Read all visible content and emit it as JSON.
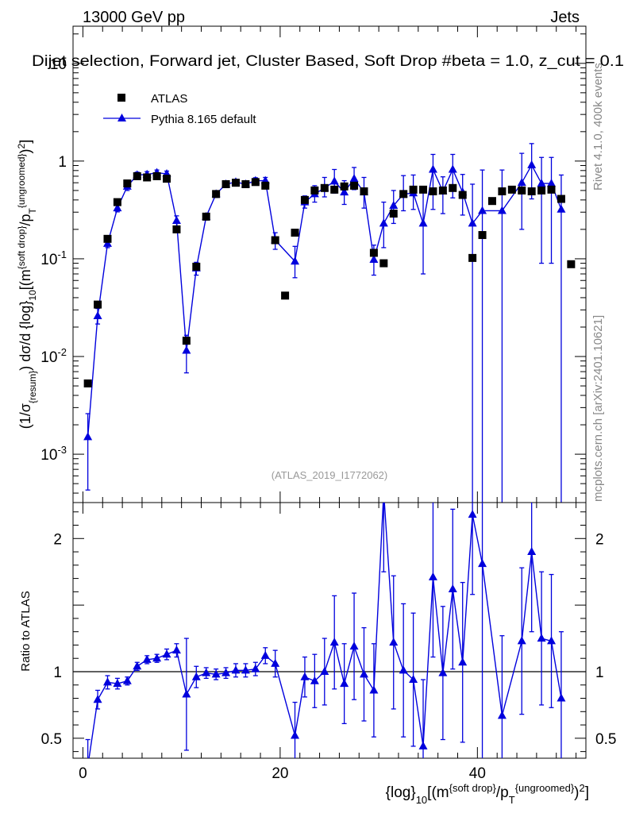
{
  "header": {
    "left": "13000 GeV pp",
    "right": "Jets",
    "title": "Dijet selection, Forward jet, Cluster Based, Soft Drop #beta = 1.0, z_cut = 0.1"
  },
  "side_labels": {
    "rivet": "Rivet 4.1.0,  400k events",
    "mcplots": "mcplots.cern.ch [arXiv:2401.10621]"
  },
  "watermark": "(ATLAS_2019_I1772062)",
  "colors": {
    "data": "#000000",
    "mc": "#0000dd"
  },
  "chart_data": [
    {
      "type": "scatter",
      "panel": "main",
      "xlabel": "{log}_10[(m^{soft drop}/p_T^{ungroomed})^2]",
      "ylabel": "(1/σ_{resum}) dσ/d {log}_10[(m^{soft drop}/p_T^{ungroomed})^2]",
      "yscale": "log",
      "xlim": [
        -1,
        51
      ],
      "ylim": [
        0.00032,
        24
      ],
      "xticks": [
        0,
        20,
        40
      ],
      "yticks": [
        {
          "value": 10,
          "label": "10"
        },
        {
          "value": 1,
          "label": "1"
        },
        {
          "value": 0.1,
          "label": "10^-1"
        },
        {
          "value": 0.01,
          "label": "10^-2"
        },
        {
          "value": 0.001,
          "label": "10^-3"
        }
      ],
      "legend": [
        "ATLAS",
        "Pythia 8.165 default"
      ],
      "legend_position": "top-left",
      "series": [
        {
          "name": "ATLAS",
          "marker": "square",
          "x": [
            0.5,
            1.5,
            2.5,
            3.5,
            4.5,
            5.5,
            6.5,
            7.5,
            8.5,
            9.5,
            10.5,
            11.5,
            12.5,
            13.5,
            14.5,
            15.5,
            16.5,
            17.5,
            18.5,
            19.5,
            20.5,
            21.5,
            22.5,
            23.5,
            24.5,
            25.5,
            26.5,
            27.5,
            28.5,
            29.5,
            30.5,
            31.5,
            32.5,
            33.5,
            34.5,
            35.5,
            36.5,
            37.5,
            38.5,
            39.5,
            40.5,
            41.5,
            42.5,
            43.5,
            44.5,
            45.5,
            46.5,
            47.5,
            48.5,
            49.5
          ],
          "y": [
            0.0053,
            0.034,
            0.16,
            0.38,
            0.59,
            0.7,
            0.68,
            0.7,
            0.66,
            0.2,
            0.0145,
            0.083,
            0.27,
            0.46,
            0.58,
            0.6,
            0.58,
            0.61,
            0.56,
            0.155,
            0.042,
            0.185,
            0.4,
            0.5,
            0.53,
            0.51,
            0.55,
            0.56,
            0.49,
            0.115,
            0.09,
            0.29,
            0.46,
            0.51,
            0.51,
            0.49,
            0.5,
            0.53,
            0.45,
            0.102,
            0.175,
            0.39,
            0.49,
            0.51,
            0.5,
            0.49,
            0.5,
            0.51,
            0.41,
            0.088
          ]
        },
        {
          "name": "Pythia 8.165 default",
          "marker": "triangle",
          "x": [
            0.5,
            1.5,
            2.5,
            3.5,
            4.5,
            5.5,
            6.5,
            7.5,
            8.5,
            9.5,
            10.5,
            11.5,
            12.5,
            13.5,
            14.5,
            15.5,
            16.5,
            17.5,
            18.5,
            19.5,
            21.5,
            22.5,
            23.5,
            24.5,
            25.5,
            26.5,
            27.5,
            28.5,
            29.5,
            30.5,
            31.5,
            32.5,
            33.5,
            34.5,
            35.5,
            36.5,
            37.5,
            38.5,
            39.5,
            40.5,
            42.5,
            44.5,
            45.5,
            46.5,
            47.5,
            48.5
          ],
          "y": [
            0.0015,
            0.026,
            0.143,
            0.33,
            0.55,
            0.72,
            0.73,
            0.76,
            0.74,
            0.245,
            0.0115,
            0.08,
            0.27,
            0.46,
            0.58,
            0.61,
            0.58,
            0.63,
            0.63,
            0.155,
            0.094,
            0.38,
            0.46,
            0.53,
            0.62,
            0.48,
            0.66,
            0.48,
            0.098,
            0.23,
            0.35,
            0.46,
            0.47,
            0.23,
            0.82,
            0.49,
            0.82,
            0.48,
            0.23,
            0.31,
            0.31,
            0.6,
            0.91,
            0.59,
            0.59,
            0.32
          ],
          "yerr_low": [
            0.00107,
            0.0045,
            0.013,
            0.028,
            0.05,
            0.05,
            0.05,
            0.05,
            0.05,
            0.03,
            0.0047,
            0.012,
            0.02,
            0.035,
            0.045,
            0.04,
            0.04,
            0.045,
            0.05,
            0.03,
            0.03,
            0.05,
            0.08,
            0.1,
            0.15,
            0.12,
            0.15,
            0.15,
            0.03,
            0.1,
            0.12,
            0.15,
            0.15,
            0.16,
            0.5,
            0.2,
            0.4,
            0.2,
            0.23,
            0.31,
            0.31,
            0.4,
            0.5,
            0.5,
            0.5,
            0.32
          ],
          "yerr_high": [
            0.0011,
            0.005,
            0.013,
            0.03,
            0.05,
            0.05,
            0.05,
            0.05,
            0.05,
            0.03,
            0.005,
            0.012,
            0.02,
            0.035,
            0.045,
            0.04,
            0.04,
            0.045,
            0.05,
            0.03,
            0.04,
            0.06,
            0.1,
            0.15,
            0.2,
            0.15,
            0.2,
            0.2,
            0.04,
            0.15,
            0.15,
            0.25,
            0.25,
            0.3,
            0.35,
            0.2,
            0.35,
            0.25,
            0.35,
            0.5,
            0.5,
            0.6,
            0.6,
            0.5,
            0.5,
            0.4
          ]
        }
      ]
    },
    {
      "type": "line",
      "panel": "ratio",
      "ylabel": "Ratio to ATLAS",
      "xlabel": "{log}_10[(m^{soft drop}/p_T^{ungroomed})^2]",
      "xlim": [
        -1,
        51
      ],
      "ylim": [
        0.35,
        2.27
      ],
      "yticks": [
        0.5,
        1,
        2
      ],
      "reference_line": 1,
      "series": [
        {
          "name": "Pythia 8.165 default / ATLAS",
          "x": [
            0.5,
            1.5,
            2.5,
            3.5,
            4.5,
            5.5,
            6.5,
            7.5,
            8.5,
            9.5,
            10.5,
            11.5,
            12.5,
            13.5,
            14.5,
            15.5,
            16.5,
            17.5,
            18.5,
            19.5,
            21.5,
            22.5,
            23.5,
            24.5,
            25.5,
            26.5,
            27.5,
            28.5,
            29.5,
            30.5,
            31.5,
            32.5,
            33.5,
            34.5,
            35.5,
            36.5,
            37.5,
            38.5,
            39.5,
            40.5,
            42.5,
            44.5,
            45.5,
            46.5,
            47.5,
            48.5
          ],
          "y": [
            0.29,
            0.79,
            0.92,
            0.91,
            0.93,
            1.04,
            1.09,
            1.1,
            1.13,
            1.16,
            0.83,
            0.96,
            0.99,
            0.98,
            0.99,
            1.01,
            1.01,
            1.02,
            1.12,
            1.06,
            0.52,
            0.96,
            0.93,
            1.0,
            1.22,
            0.91,
            1.19,
            0.98,
            0.86,
            2.35,
            1.22,
            1.01,
            0.94,
            0.44,
            1.71,
            0.99,
            1.62,
            1.07,
            2.18,
            1.81,
            0.67,
            1.23,
            1.9,
            1.25,
            1.23,
            0.8
          ],
          "yerr": [
            0.2,
            0.07,
            0.05,
            0.04,
            0.03,
            0.03,
            0.03,
            0.03,
            0.04,
            0.05,
            0.42,
            0.08,
            0.04,
            0.04,
            0.04,
            0.05,
            0.05,
            0.05,
            0.06,
            0.1,
            0.25,
            0.15,
            0.2,
            0.25,
            0.35,
            0.3,
            0.4,
            0.35,
            0.35,
            0.6,
            0.5,
            0.5,
            0.5,
            0.5,
            0.6,
            0.5,
            0.6,
            0.6,
            0.6,
            1.5,
            0.6,
            0.55,
            0.6,
            0.5,
            0.5,
            0.5
          ]
        }
      ]
    }
  ]
}
